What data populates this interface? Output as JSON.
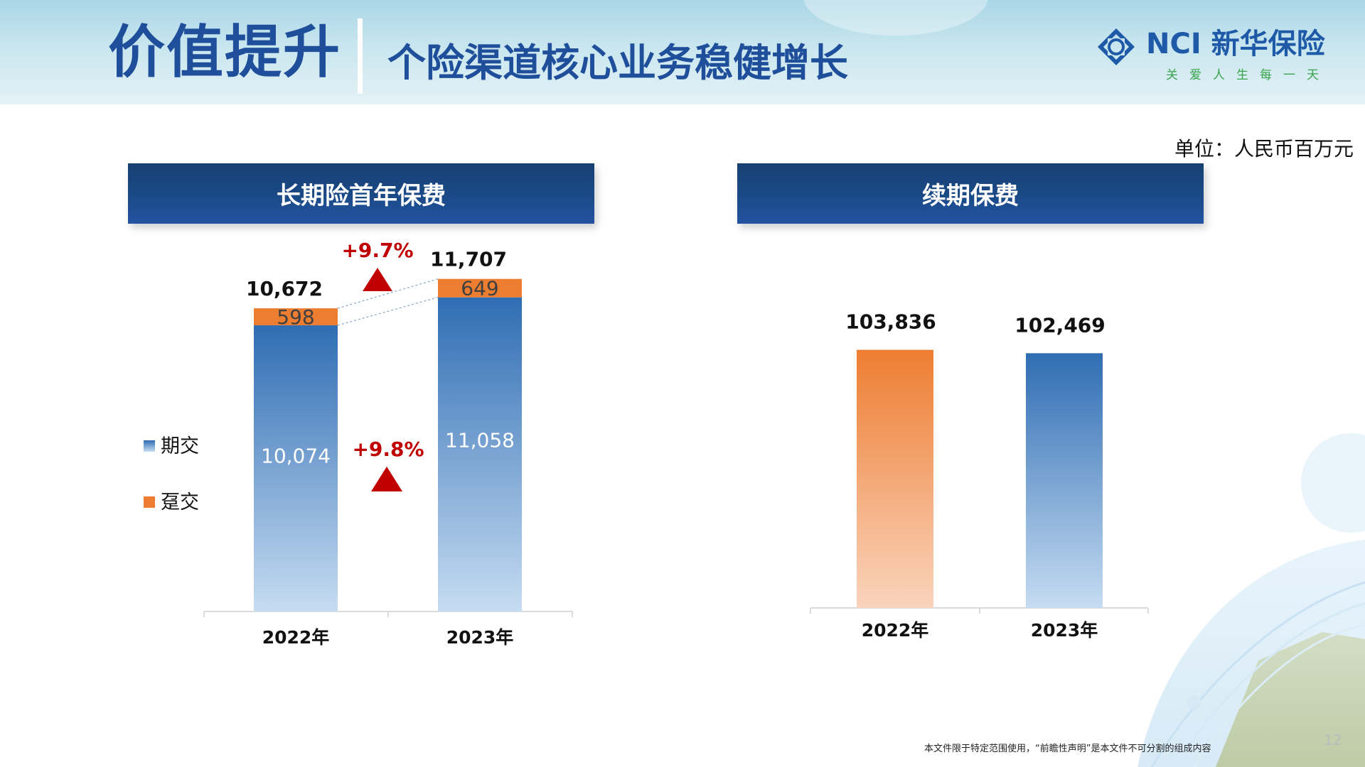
{
  "header": {
    "title": "价值提升",
    "subtitle": "个险渠道核心业务稳健增长",
    "logo_name": "NCI 新华保险",
    "logo_slogan": "关爱人生每一天"
  },
  "unit_label": "单位：人民币百万元",
  "left_panel": {
    "title": "长期险首年保费",
    "growth_total": "+9.7%",
    "growth_regular": "+9.8%",
    "legend": [
      "期交",
      "趸交"
    ]
  },
  "right_panel": {
    "title": "续期保费"
  },
  "footer": {
    "note": "本文件限于特定范围使用，“前瞻性声明”是本文件不可分割的组成内容",
    "page_number": "12"
  },
  "colors": {
    "blue": "#2f6db3",
    "blue_light": "#c6dcf2",
    "orange": "#ed7d31",
    "orange_light": "#fad4bd",
    "red": "#c00000",
    "navy": "#1a4a87"
  },
  "chart_data": [
    {
      "type": "bar",
      "stacked": true,
      "categories": [
        "2022年",
        "2023年"
      ],
      "series": [
        {
          "name": "期交",
          "values": [
            10074,
            11058
          ],
          "labels": [
            "10,074",
            "11,058"
          ]
        },
        {
          "name": "趸交",
          "values": [
            598,
            649
          ],
          "labels": [
            "598",
            "649"
          ]
        }
      ],
      "totals": [
        10672,
        11707
      ],
      "total_labels": [
        "10,672",
        "11,707"
      ],
      "ylim": [
        0,
        12000
      ]
    },
    {
      "type": "bar",
      "categories": [
        "2022年",
        "2023年"
      ],
      "values": [
        103836,
        102469
      ],
      "value_labels": [
        "103,836",
        "102,469"
      ],
      "ylim": [
        0,
        120000
      ]
    }
  ]
}
